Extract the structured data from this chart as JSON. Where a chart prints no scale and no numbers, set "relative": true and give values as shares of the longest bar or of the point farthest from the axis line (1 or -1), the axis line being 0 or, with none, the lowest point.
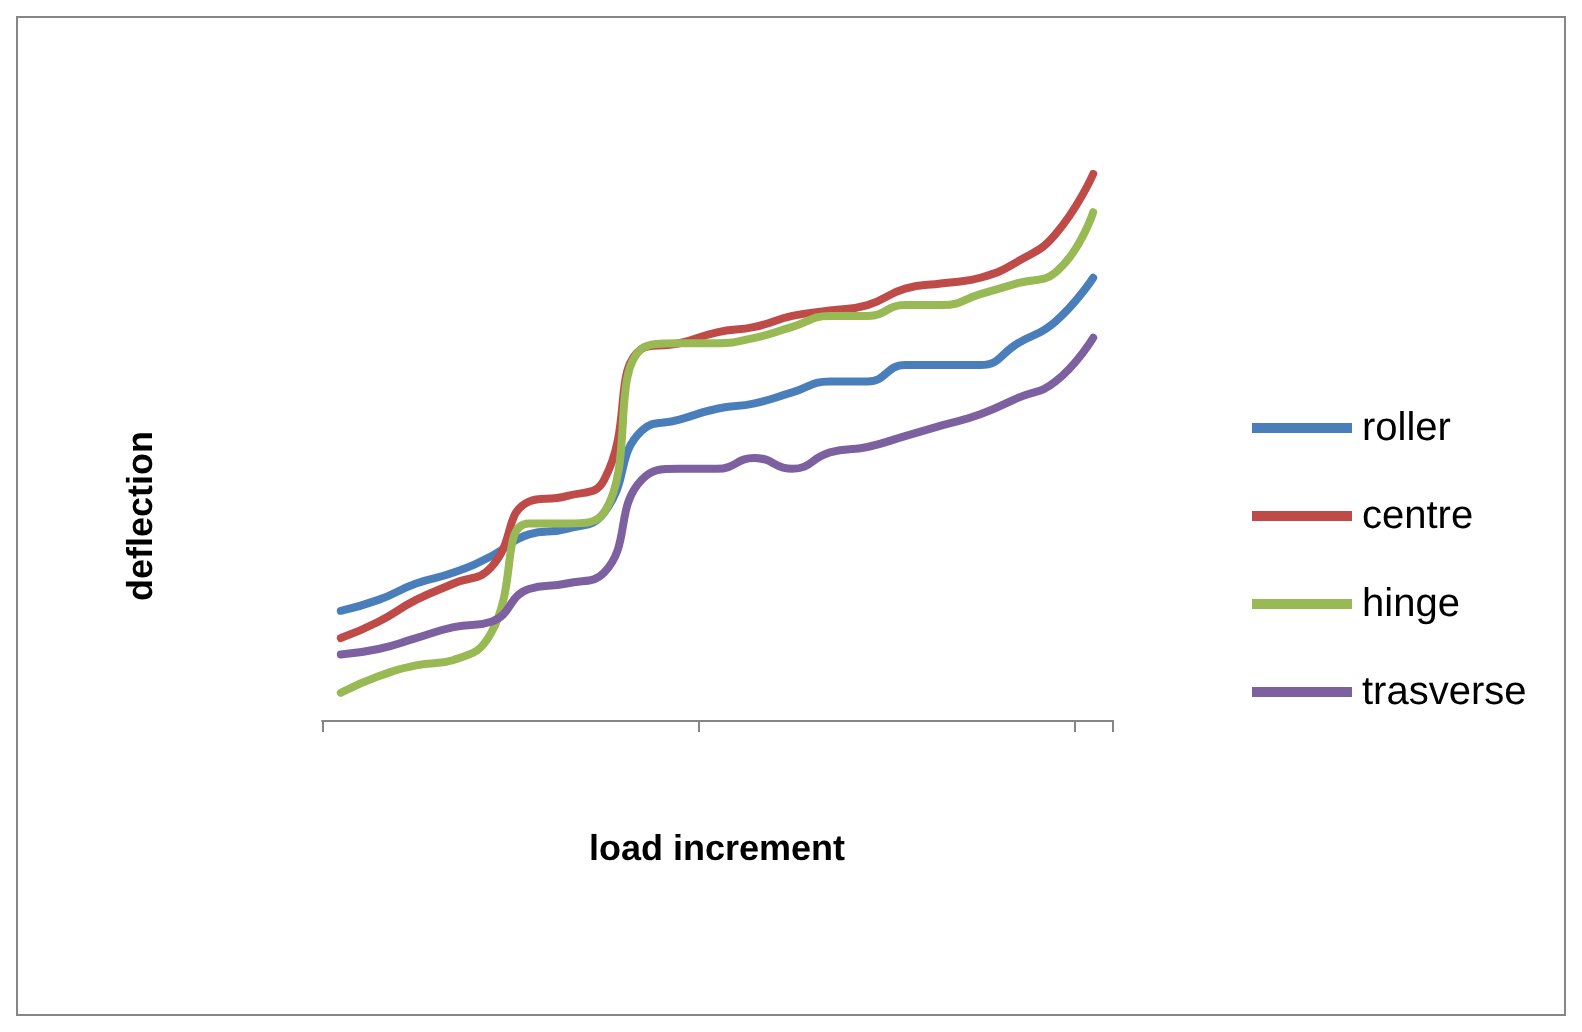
{
  "chart_data": {
    "type": "line",
    "xlabel": "load increment",
    "ylabel": "deflection",
    "relative": true,
    "legend": "right",
    "grid": false,
    "marker": "none",
    "line_style": "solid",
    "categories": [
      null,
      null,
      null,
      null,
      null,
      null,
      null,
      null,
      null,
      null,
      null,
      null,
      null,
      null,
      null,
      null,
      null,
      null,
      null,
      null,
      null
    ],
    "series": [
      {
        "name": "roller",
        "color": "#4a7ebb",
        "values": [
          0.2,
          0.22,
          0.25,
          0.27,
          0.3,
          0.34,
          0.35,
          0.38,
          0.53,
          0.55,
          0.57,
          0.58,
          0.6,
          0.62,
          0.62,
          0.65,
          0.65,
          0.65,
          0.69,
          0.73,
          0.81
        ]
      },
      {
        "name": "centre",
        "color": "#be4b48",
        "values": [
          0.15,
          0.18,
          0.22,
          0.25,
          0.28,
          0.4,
          0.41,
          0.44,
          0.68,
          0.69,
          0.71,
          0.72,
          0.74,
          0.75,
          0.76,
          0.79,
          0.8,
          0.81,
          0.84,
          0.89,
          1
        ]
      },
      {
        "name": "hinge",
        "color": "#98b954",
        "values": [
          0.05,
          0.08,
          0.1,
          0.11,
          0.16,
          0.36,
          0.36,
          0.38,
          0.68,
          0.69,
          0.69,
          0.7,
          0.72,
          0.74,
          0.74,
          0.76,
          0.76,
          0.78,
          0.8,
          0.82,
          0.93
        ]
      },
      {
        "name": "trasverse",
        "color": "#7d60a0",
        "values": [
          0.12,
          0.13,
          0.15,
          0.17,
          0.18,
          0.24,
          0.25,
          0.27,
          0.44,
          0.46,
          0.46,
          0.48,
          0.46,
          0.49,
          0.5,
          0.52,
          0.54,
          0.56,
          0.59,
          0.62,
          0.7
        ]
      }
    ]
  }
}
